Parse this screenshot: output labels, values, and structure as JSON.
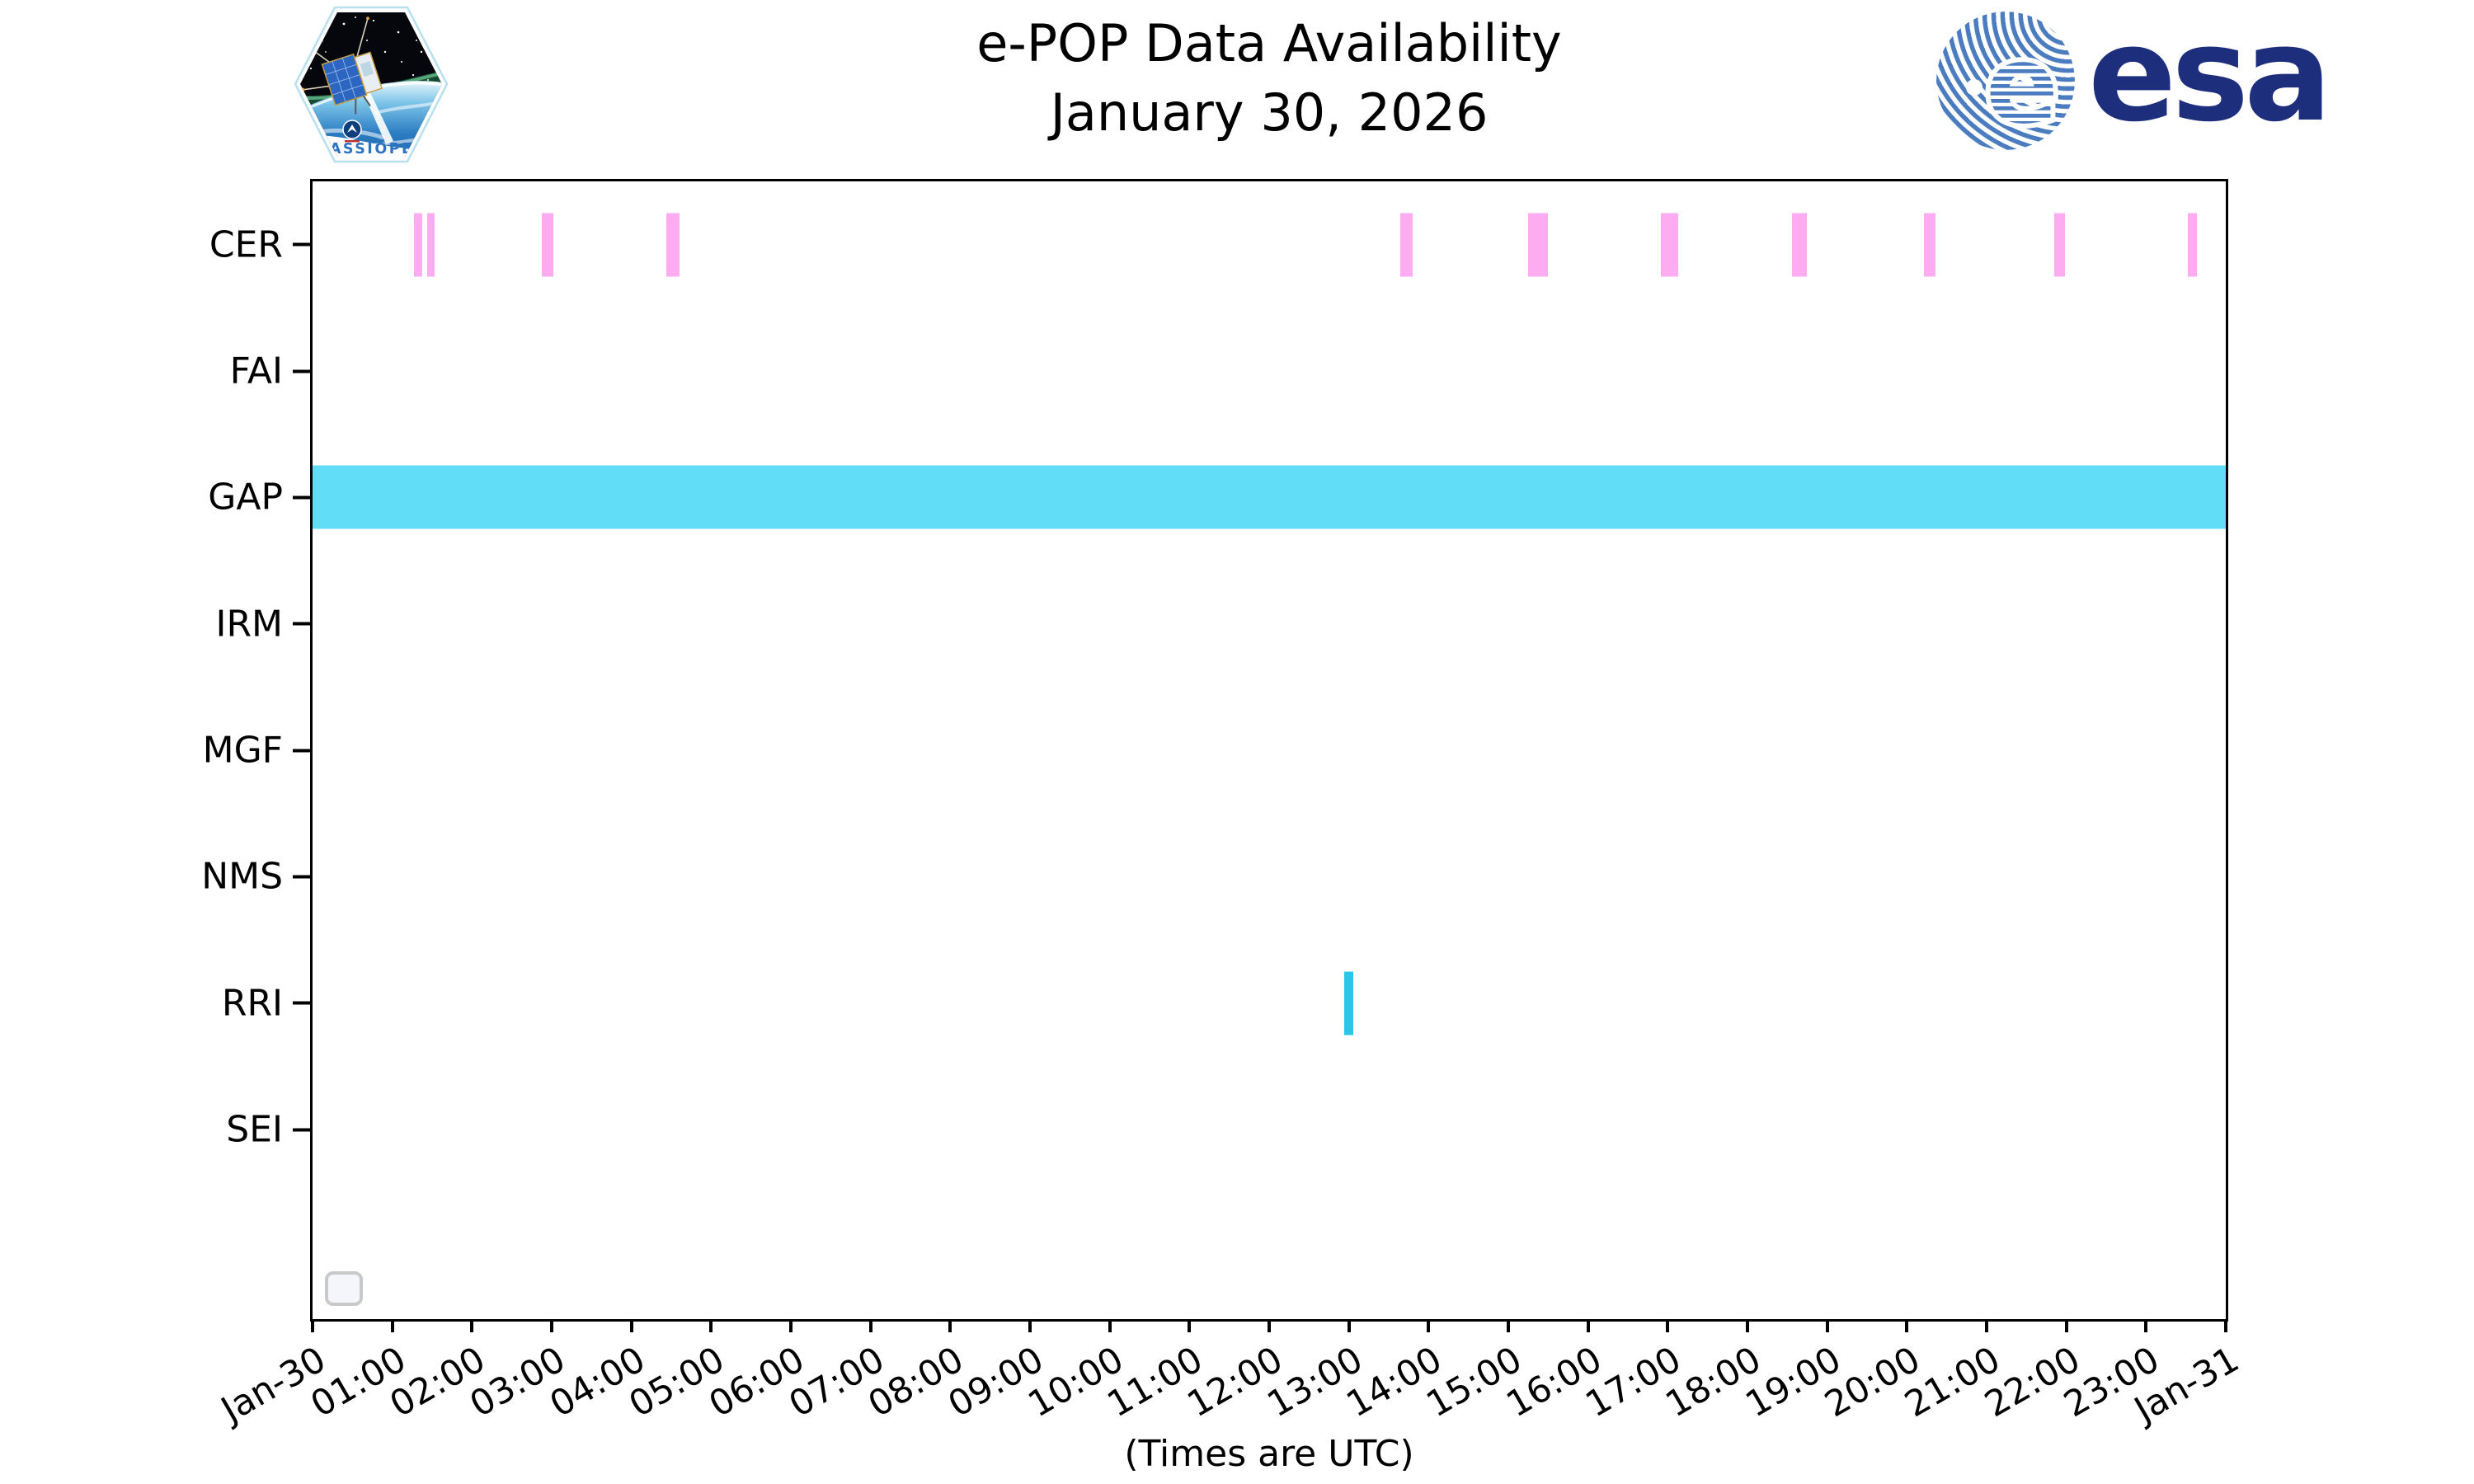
{
  "header": {
    "title": "e-POP Data Availability",
    "subtitle": "January 30, 2026",
    "cassiope_badge_label": "CASSIOPE",
    "esa_globe_letter": "e",
    "esa_logo_text": "esa"
  },
  "colors": {
    "cer_bar_pink": "#fdacf2",
    "gap_bar_cyan": "#62ddf8",
    "rri_bar_cyan": "#2bc5e8",
    "axis_black": "#000000",
    "esa_navy": "#1d2e7c",
    "esa_stripe_blue": "#4a7cbf",
    "cassiope_text_blue": "#2d73c2",
    "legend_box_border": "#c9c9c9",
    "legend_box_fill": "#f4f6fb"
  },
  "legend": {
    "empty": true,
    "position": "bottom-left-inside-plot"
  },
  "chart_data": {
    "type": "bar",
    "variant": "timeline-availability (horizontal interval bars per instrument row)",
    "title": "e-POP Data Availability",
    "subtitle": "January 30, 2026",
    "xlabel": "(Times are UTC)",
    "x_range_hours": [
      0,
      24
    ],
    "x_tick_interval_hours": 1,
    "x_tick_labels": [
      "Jan-30",
      "01:00",
      "02:00",
      "03:00",
      "04:00",
      "05:00",
      "06:00",
      "07:00",
      "08:00",
      "09:00",
      "10:00",
      "11:00",
      "12:00",
      "13:00",
      "14:00",
      "15:00",
      "16:00",
      "17:00",
      "18:00",
      "19:00",
      "20:00",
      "21:00",
      "22:00",
      "23:00",
      "Jan-31"
    ],
    "x_tick_rotation_deg": 30,
    "grid": false,
    "row_slots": 9,
    "rows": [
      {
        "label": "CER",
        "color": "#fdacf2",
        "intervals_hours": [
          [
            1.27,
            1.38
          ],
          [
            1.44,
            1.53
          ],
          [
            2.88,
            3.02
          ],
          [
            4.44,
            4.6
          ],
          [
            13.64,
            13.8
          ],
          [
            15.25,
            15.5
          ],
          [
            16.91,
            17.13
          ],
          [
            18.56,
            18.75
          ],
          [
            20.21,
            20.36
          ],
          [
            21.85,
            21.98
          ],
          [
            23.52,
            23.64
          ]
        ]
      },
      {
        "label": "FAI",
        "color": null,
        "intervals_hours": []
      },
      {
        "label": "GAP",
        "color": "#62ddf8",
        "intervals_hours": [
          [
            0.0,
            24.0
          ]
        ]
      },
      {
        "label": "IRM",
        "color": null,
        "intervals_hours": []
      },
      {
        "label": "MGF",
        "color": null,
        "intervals_hours": []
      },
      {
        "label": "NMS",
        "color": null,
        "intervals_hours": []
      },
      {
        "label": "RRI",
        "color": "#2bc5e8",
        "intervals_hours": [
          [
            12.94,
            13.06
          ]
        ]
      },
      {
        "label": "SEI",
        "color": null,
        "intervals_hours": []
      }
    ]
  }
}
